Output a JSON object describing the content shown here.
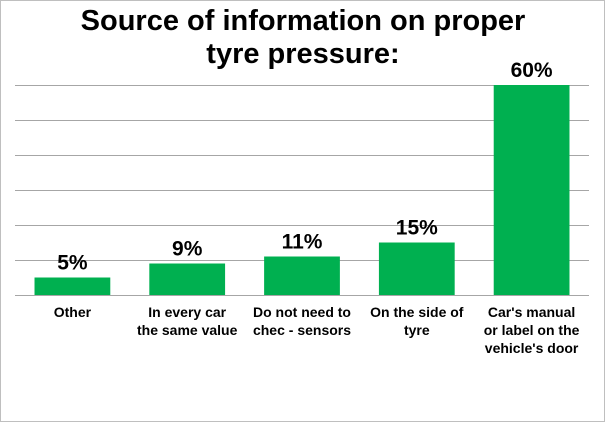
{
  "chart_data": {
    "type": "bar",
    "title": [
      "Source of information on proper",
      "tyre pressure:"
    ],
    "categories": [
      [
        "Other"
      ],
      [
        "In every car",
        "the same value"
      ],
      [
        "Do not need to",
        "chec - sensors"
      ],
      [
        "On the side of",
        "tyre"
      ],
      [
        "Car's manual",
        "or label on the",
        "vehicle's door"
      ]
    ],
    "values": [
      5,
      9,
      11,
      15,
      60
    ],
    "data_labels": [
      "5%",
      "9%",
      "11%",
      "15%",
      "60%"
    ],
    "unit": "%",
    "ylim": [
      0,
      60
    ],
    "ytick_step": 10,
    "grid": true,
    "legend": "none",
    "bar_color": "#00b050",
    "grid_color": "#a6a6a6"
  }
}
